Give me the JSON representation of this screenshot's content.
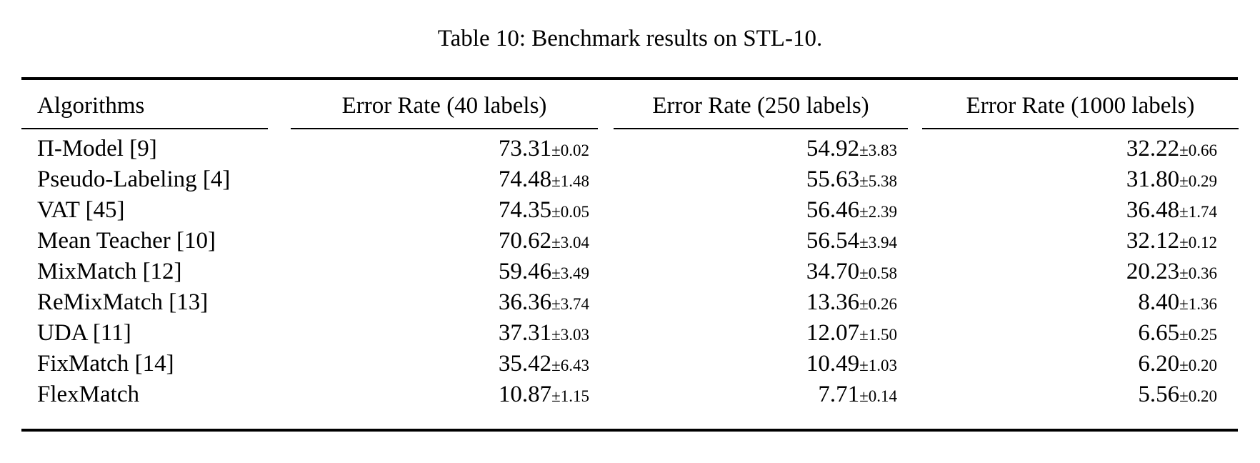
{
  "title": "Table 10: Benchmark results on STL-10.",
  "table": {
    "headers": [
      "Algorithms",
      "Error Rate (40 labels)",
      "Error Rate (250 labels)",
      "Error Rate (1000 labels)"
    ],
    "rows": [
      {
        "algorithm": "Π-Model [9]",
        "cells": [
          {
            "mean": "73.31",
            "pm": "±0.02"
          },
          {
            "mean": "54.92",
            "pm": "±3.83"
          },
          {
            "mean": "32.22",
            "pm": "±0.66"
          }
        ]
      },
      {
        "algorithm": "Pseudo-Labeling [4]",
        "cells": [
          {
            "mean": "74.48",
            "pm": "±1.48"
          },
          {
            "mean": "55.63",
            "pm": "±5.38"
          },
          {
            "mean": "31.80",
            "pm": "±0.29"
          }
        ]
      },
      {
        "algorithm": "VAT [45]",
        "cells": [
          {
            "mean": "74.35",
            "pm": "±0.05"
          },
          {
            "mean": "56.46",
            "pm": "±2.39"
          },
          {
            "mean": "36.48",
            "pm": "±1.74"
          }
        ]
      },
      {
        "algorithm": "Mean Teacher [10]",
        "cells": [
          {
            "mean": "70.62",
            "pm": "±3.04"
          },
          {
            "mean": "56.54",
            "pm": "±3.94"
          },
          {
            "mean": "32.12",
            "pm": "±0.12"
          }
        ]
      },
      {
        "algorithm": "MixMatch [12]",
        "cells": [
          {
            "mean": "59.46",
            "pm": "±3.49"
          },
          {
            "mean": "34.70",
            "pm": "±0.58"
          },
          {
            "mean": "20.23",
            "pm": "±0.36"
          }
        ]
      },
      {
        "algorithm": "ReMixMatch [13]",
        "cells": [
          {
            "mean": "36.36",
            "pm": "±3.74"
          },
          {
            "mean": "13.36",
            "pm": "±0.26"
          },
          {
            "mean": "8.40",
            "pm": "±1.36"
          }
        ]
      },
      {
        "algorithm": "UDA [11]",
        "cells": [
          {
            "mean": "37.31",
            "pm": "±3.03"
          },
          {
            "mean": "12.07",
            "pm": "±1.50"
          },
          {
            "mean": "6.65",
            "pm": "±0.25"
          }
        ]
      },
      {
        "algorithm": "FixMatch [14]",
        "cells": [
          {
            "mean": "35.42",
            "pm": "±6.43"
          },
          {
            "mean": "10.49",
            "pm": "±1.03"
          },
          {
            "mean": "6.20",
            "pm": "±0.20"
          }
        ]
      },
      {
        "algorithm": "FlexMatch",
        "cells": [
          {
            "mean": "10.87",
            "pm": "±1.15"
          },
          {
            "mean": "7.71",
            "pm": "±0.14"
          },
          {
            "mean": "5.56",
            "pm": "±0.20"
          }
        ]
      }
    ]
  }
}
